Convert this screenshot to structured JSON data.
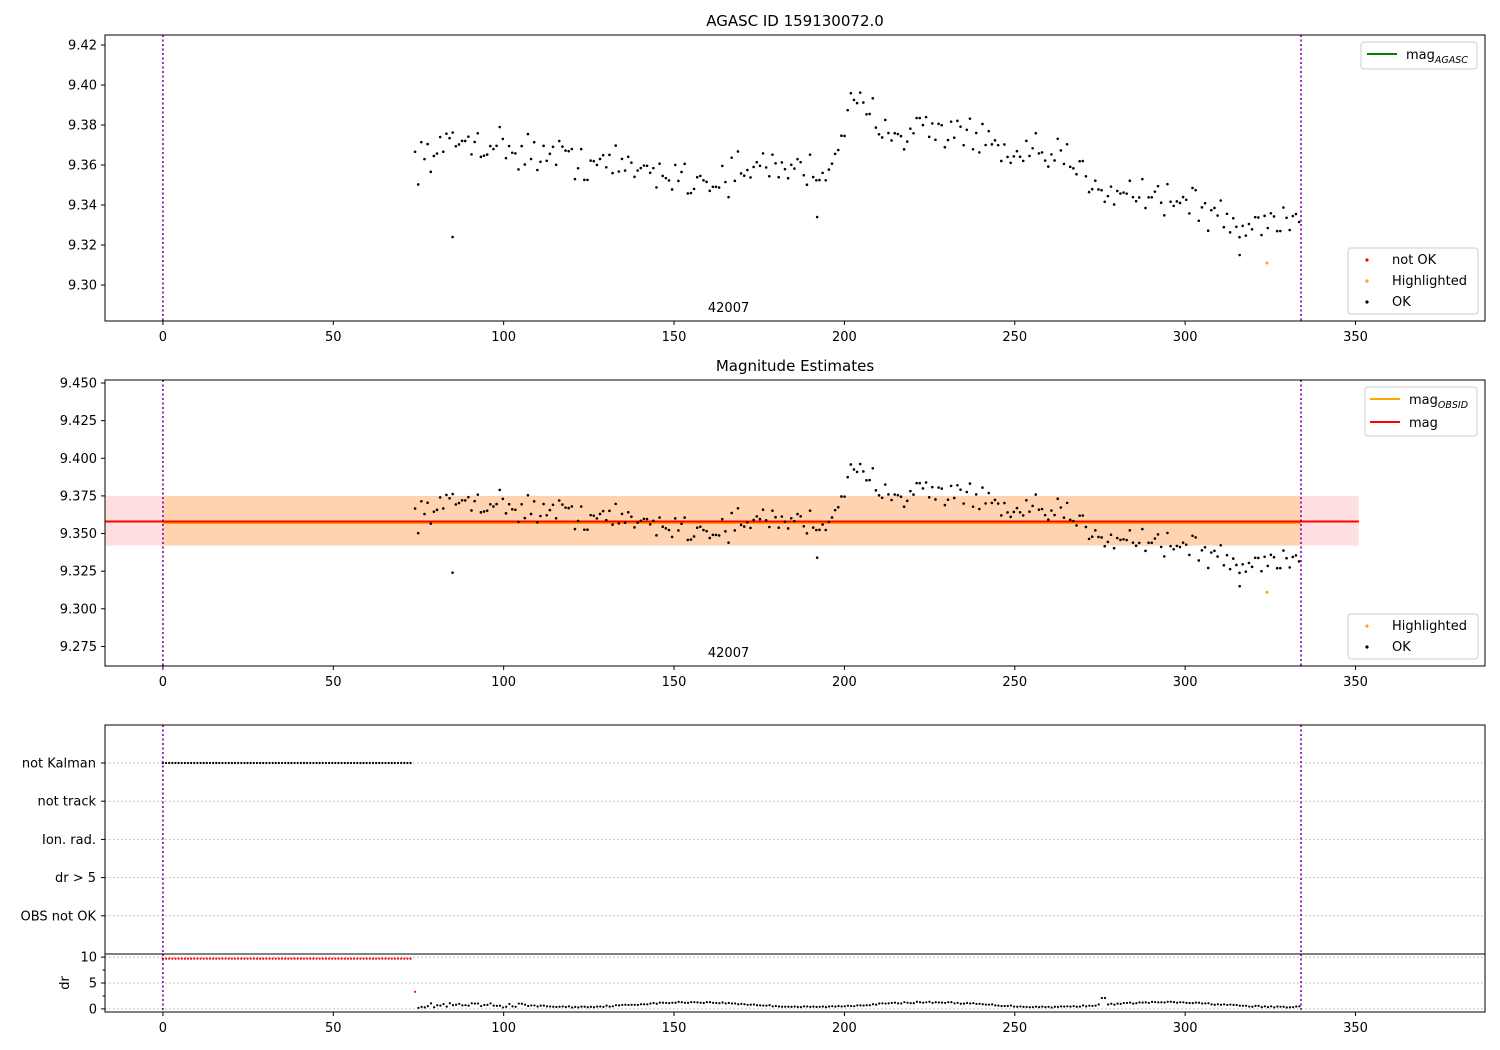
{
  "chart_data": [
    {
      "type": "scatter",
      "title": "AGASC ID 159130072.0",
      "xlim": [
        -17,
        388
      ],
      "ylim": [
        9.282,
        9.425
      ],
      "xticks": [
        0,
        50,
        100,
        150,
        200,
        250,
        300,
        350
      ],
      "yticks": [
        9.3,
        9.32,
        9.34,
        9.36,
        9.38,
        9.4,
        9.42
      ],
      "ytick_labels": [
        "9.30",
        "9.32",
        "9.34",
        "9.36",
        "9.38",
        "9.40",
        "9.42"
      ],
      "obsid_label": "42007",
      "obsid_label_x": 166,
      "vlines": [
        0,
        334
      ],
      "legend_lines": [
        {
          "label": "mag",
          "sub": "AGASC",
          "color": "#008000"
        }
      ],
      "legend_points": [
        {
          "label": "not OK",
          "color": "#ff0000"
        },
        {
          "label": "Highlighted",
          "color": "#ffa500"
        },
        {
          "label": "OK",
          "color": "#000000"
        }
      ],
      "highlighted": [
        [
          324,
          9.311
        ]
      ],
      "series_color": {
        "ok": "#000000",
        "highlighted": "#ffa500"
      }
    },
    {
      "type": "scatter",
      "title": "Magnitude Estimates",
      "xlim": [
        -17,
        388
      ],
      "ylim": [
        9.262,
        9.452
      ],
      "xticks": [
        0,
        50,
        100,
        150,
        200,
        250,
        300,
        350
      ],
      "yticks": [
        9.275,
        9.3,
        9.325,
        9.35,
        9.375,
        9.4,
        9.425,
        9.45
      ],
      "ytick_labels": [
        "9.275",
        "9.300",
        "9.325",
        "9.350",
        "9.375",
        "9.400",
        "9.425",
        "9.450"
      ],
      "obsid_label": "42007",
      "obsid_label_x": 166,
      "vlines": [
        0,
        334
      ],
      "mag": 9.358,
      "mag_band": [
        9.342,
        9.375
      ],
      "mag_x": [
        -17,
        351
      ],
      "mag_obsid": 9.357,
      "mag_obsid_band": [
        9.342,
        9.375
      ],
      "mag_obsid_x": [
        0,
        334
      ],
      "legend_lines": [
        {
          "label": "mag",
          "sub": "OBSID",
          "color": "#ffa500"
        },
        {
          "label": "mag",
          "sub": "",
          "color": "#ff0000"
        }
      ],
      "legend_points": [
        {
          "label": "Highlighted",
          "color": "#ffa500"
        },
        {
          "label": "OK",
          "color": "#000000"
        }
      ],
      "highlighted": [
        [
          324,
          9.311
        ]
      ]
    },
    {
      "type": "scatter",
      "title": "",
      "xlim": [
        -17,
        388
      ],
      "flag_labels": [
        "not Kalman",
        "not track",
        "Ion. rad.",
        "dr > 5",
        "OBS not OK"
      ],
      "not_kalman_x_range": [
        0,
        73
      ],
      "ylabel": "dr",
      "dr_ylim": [
        -0.6,
        10.6
      ],
      "dr_yticks": [
        0,
        5,
        10
      ],
      "dr_ytick_labels": [
        "0",
        "5",
        "10"
      ],
      "dr_red_value": 9.7,
      "dr_red_x_range": [
        0,
        73
      ],
      "dr_transition_point": [
        74,
        3.3
      ],
      "xticks": [
        0,
        50,
        100,
        150,
        200,
        250,
        300,
        350
      ],
      "vlines": [
        0,
        334
      ]
    }
  ]
}
